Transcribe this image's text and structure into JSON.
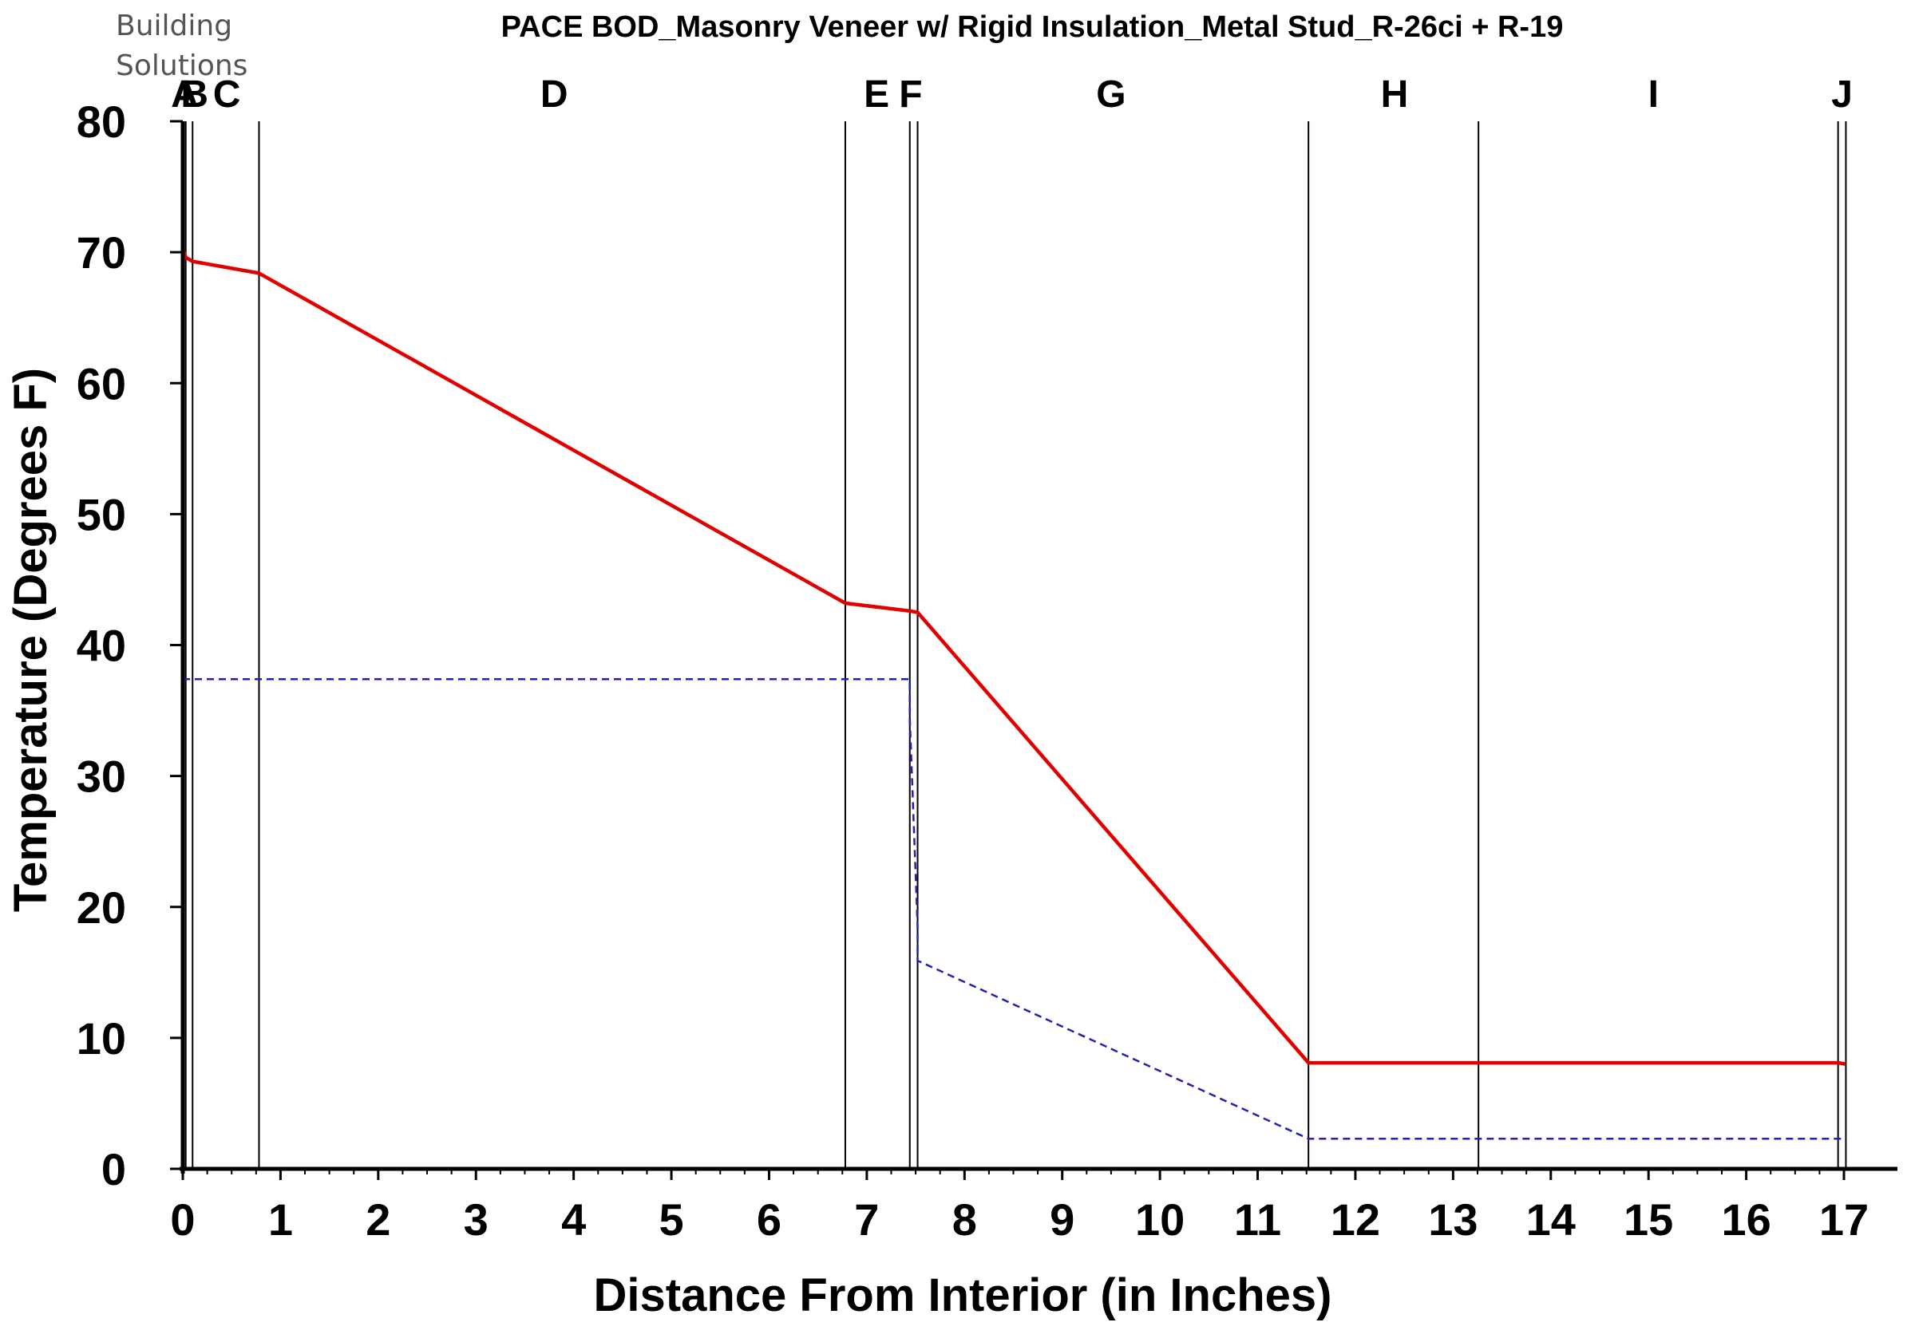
{
  "brand": {
    "line1": "Building",
    "line2": "Solutions"
  },
  "chart_data": {
    "type": "line",
    "title": "",
    "subtitle": "PACE BOD_Masonry Veneer w/ Rigid Insulation_Metal Stud_R-26ci + R-19",
    "xlabel": "Distance From Interior (in Inches)",
    "ylabel": "Temperature (Degrees F)",
    "xlim": [
      0,
      17
    ],
    "ylim": [
      0,
      80
    ],
    "x_ticks": [
      "0",
      "1",
      "2",
      "3",
      "4",
      "5",
      "6",
      "7",
      "8",
      "9",
      "10",
      "11",
      "12",
      "13",
      "14",
      "15",
      "16",
      "17"
    ],
    "y_ticks": [
      "0",
      "10",
      "20",
      "30",
      "40",
      "50",
      "60",
      "70",
      "80"
    ],
    "grid": false,
    "layer_boundaries": [
      0,
      0.03,
      0.1,
      0.78,
      6.78,
      7.44,
      7.52,
      11.52,
      13.26,
      16.94,
      17.02
    ],
    "layer_labels": [
      {
        "label": "A",
        "x": 0.02
      },
      {
        "label": "B",
        "x": 0.12
      },
      {
        "label": "C",
        "x": 0.45
      },
      {
        "label": "D",
        "x": 3.8
      },
      {
        "label": "E",
        "x": 7.1
      },
      {
        "label": "F",
        "x": 7.45
      },
      {
        "label": "G",
        "x": 9.5
      },
      {
        "label": "H",
        "x": 12.4
      },
      {
        "label": "I",
        "x": 15.05
      },
      {
        "label": "J",
        "x": 16.98
      }
    ],
    "series": [
      {
        "color": "#e00000",
        "style": "solid",
        "x": [
          0,
          0.03,
          0.1,
          0.78,
          6.78,
          7.44,
          7.52,
          11.52,
          13.26,
          16.94,
          17.02
        ],
        "y": [
          70.3,
          69.6,
          69.3,
          68.4,
          43.2,
          42.6,
          42.5,
          8.1,
          8.1,
          8.1,
          8.0
        ]
      },
      {
        "color": "#2222aa",
        "style": "dashed",
        "x": [
          0,
          7.44,
          7.44,
          7.52,
          7.52,
          11.52,
          17.02
        ],
        "y": [
          37.4,
          37.4,
          34.5,
          18.5,
          15.9,
          2.3,
          2.3
        ]
      }
    ]
  }
}
